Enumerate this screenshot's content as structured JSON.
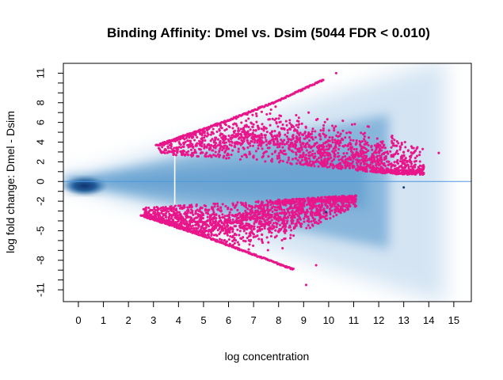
{
  "chart_data": {
    "type": "scatter",
    "title": "Binding Affinity: Dmel vs. Dsim (5044 FDR < 0.010)",
    "xlabel": "log concentration",
    "ylabel": "log fold change: Dmel - Dsim",
    "xlim": [
      -0.6,
      15.7
    ],
    "ylim": [
      -12.2,
      12.0
    ],
    "x_ticks": [
      0,
      1,
      2,
      3,
      4,
      5,
      6,
      7,
      8,
      9,
      10,
      11,
      12,
      13,
      14,
      15
    ],
    "y_tick_labels": [
      -11,
      -8,
      -5,
      -2,
      0,
      2,
      4,
      6,
      8,
      11
    ],
    "y_minor_ticks": [
      -11,
      -10,
      -9,
      -8,
      -7,
      -6,
      -5,
      -4,
      -3,
      -2,
      -1,
      0,
      1,
      2,
      3,
      4,
      5,
      6,
      7,
      8,
      9,
      10,
      11
    ],
    "reference_line_y": 0,
    "threshold_line_x": 3.85,
    "grid": false,
    "colors": {
      "significant": "#e8168a",
      "density_core": "#0b3d7a",
      "density_mid": "#4a90c8",
      "density_light": "#c6dcef",
      "reference_line": "#4f97e0"
    },
    "series": [
      {
        "role": "significant sites (FDR < 0.010)",
        "upper_boundary": [
          [
            3.1,
            3.7
          ],
          [
            6.0,
            6.3
          ],
          [
            8.0,
            8.3
          ],
          [
            9.8,
            10.4
          ]
        ],
        "lower_boundary": [
          [
            2.5,
            -3.5
          ],
          [
            5.0,
            -5.6
          ],
          [
            7.0,
            -7.5
          ],
          [
            8.6,
            -9.0
          ]
        ],
        "points": [
          [
            10.3,
            11.0
          ],
          [
            14.4,
            2.9
          ],
          [
            13.8,
            1.4
          ],
          [
            13.3,
            2.0
          ],
          [
            12.9,
            2.5
          ],
          [
            9.8,
            5.7
          ],
          [
            9.2,
            7.0
          ],
          [
            8.8,
            6.1
          ],
          [
            10.2,
            -2.2
          ],
          [
            9.9,
            -3.2
          ],
          [
            9.1,
            -10.5
          ],
          [
            9.5,
            -8.5
          ],
          [
            12.5,
            1.5
          ],
          [
            11.8,
            2.6
          ],
          [
            7.7,
            7.3
          ]
        ]
      },
      {
        "role": "non-significant outliers",
        "points": [
          [
            13.0,
            -0.6
          ],
          [
            9.9,
            -3.1
          ]
        ]
      }
    ]
  }
}
